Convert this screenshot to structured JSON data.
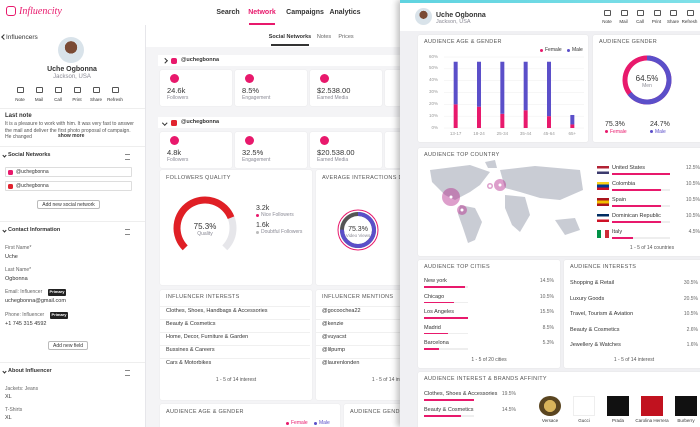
{
  "nav": {
    "brand": "Influencity",
    "tabs": [
      "Search",
      "Network",
      "Campaigns",
      "Analytics"
    ]
  },
  "sidebar": {
    "back": "Influencers",
    "name": "Uche Ogbonna",
    "location": "Jackson, USA",
    "actions": [
      "Note",
      "Mail",
      "Call",
      "Print",
      "Share",
      "Refresh"
    ],
    "last_note": {
      "title": "Last note",
      "text": "It is a pleasure to work with him. It was very fast to answer the mail and deliver the first photo proposal of campaign. He changed",
      "more": "show more"
    },
    "social_networks": {
      "title": "Social Networks",
      "accounts": [
        "@uchegbonna",
        "@uchegbonna"
      ],
      "button": "Add new social network"
    },
    "contact": {
      "title": "Contact Information",
      "fields": [
        {
          "label": "First Name*",
          "value": "Uche"
        },
        {
          "label": "Last Name*",
          "value": "Ogbonna"
        },
        {
          "label": "Email: Influencer",
          "badge": "Primary",
          "value": "uchegbonna@gmail.com"
        },
        {
          "label": "Phone: Influencer",
          "badge": "Primary",
          "value": "+1 745 315 4592"
        }
      ],
      "button": "Add new field"
    },
    "about": {
      "title": "About Influencer",
      "fields": [
        {
          "label": "Jackets: Jeans",
          "value": "XL"
        },
        {
          "label": "T-Shirts",
          "value": "XL"
        }
      ]
    }
  },
  "network": {
    "subtabs": [
      "Social Networks",
      "Notes",
      "Prices"
    ],
    "accounts": [
      {
        "handle": "@uchegbonna",
        "stats": [
          {
            "value": "24.6k",
            "label": "Followers"
          },
          {
            "value": "8.5%",
            "label": "Engagement"
          },
          {
            "value": "$2.538.00",
            "label": "Earned Media"
          }
        ]
      },
      {
        "handle": "@uchegbonna",
        "stats": [
          {
            "value": "4.8k",
            "label": "Followers"
          },
          {
            "value": "32.5%",
            "label": "Engagement"
          },
          {
            "value": "$20.538.00",
            "label": "Earned Media"
          }
        ]
      }
    ],
    "followers_quality": {
      "title": "FOLLOWERS QUALITY",
      "value": 75.3,
      "value_label": "75.3%",
      "label": "Quality",
      "nice": {
        "value": "3.2k",
        "label": "Nice Followers"
      },
      "doubtful": {
        "value": "1.6k",
        "label": "Doubtful Followers"
      }
    },
    "interactions": {
      "title": "AVERAGE INTERACTIONS DIS",
      "value": 75.3,
      "value_label": "75.3%",
      "label": "Video Views"
    },
    "interests": {
      "title": "INFLUENCER INTERESTS",
      "items": [
        "Clothes, Shoes, Handbags & Accessories",
        "Beauty & Cosmetics",
        "Home, Decor, Furniture & Garden",
        "Bussines & Careers",
        "Cars & Motorbikes"
      ],
      "pager": "1 - 5 of 14 interest"
    },
    "mentions": {
      "title": "INFLUENCER MENTIONS",
      "items": [
        "@gocoochea22",
        "@kenzie",
        "@vuyacst",
        "@lilpump",
        "@laurenlonden"
      ],
      "pager": "1 - 5 of 14 interest"
    },
    "audience_age": {
      "title": "AUDIENCE AGE & GENDER",
      "legend": [
        "Female",
        "Male"
      ]
    },
    "audience_gender": {
      "title": "AUDIENCE GENDE"
    }
  },
  "report": {
    "name": "Uche Ogbonna",
    "location": "Jackson, USA",
    "actions": [
      "Note",
      "Mail",
      "Call",
      "Print",
      "Share",
      "Refresh"
    ],
    "age_gender": {
      "type": "bar",
      "title": "AUDIENCE AGE & GENDER",
      "stacked": true,
      "categories": [
        "13-17",
        "18-24",
        "25-34",
        "35-44",
        "45-64",
        "65+"
      ],
      "series": [
        {
          "name": "Female",
          "color": "#e8196c",
          "values": [
            20,
            18,
            12,
            15,
            10,
            3
          ]
        },
        {
          "name": "Male",
          "color": "#5b4fc9",
          "values": [
            36,
            38,
            44,
            41,
            46,
            8
          ]
        }
      ],
      "ylim": [
        0,
        60
      ],
      "yticks": [
        {
          "value": 0,
          "label": "0%"
        },
        {
          "value": 10,
          "label": "10%"
        },
        {
          "value": 20,
          "label": "20%"
        },
        {
          "value": 30,
          "label": "30%"
        },
        {
          "value": 40,
          "label": "40%"
        },
        {
          "value": 50,
          "label": "50%"
        },
        {
          "value": 60,
          "label": "60%"
        }
      ],
      "grid": true
    },
    "gender": {
      "title": "AUDIENCE GENDER",
      "value": 64.5,
      "value_label": "64.5%",
      "label": "Men",
      "female": {
        "name": "Female",
        "value": 75.3,
        "value_label": "75.3%"
      },
      "male": {
        "name": "Male",
        "value": 24.7,
        "value_label": "24.7%"
      }
    },
    "countries": {
      "title": "AUDIENCE TOP COUNTRY",
      "items": [
        {
          "name": "United States",
          "value": 12.5,
          "value_label": "12.5%"
        },
        {
          "name": "Colombia",
          "value": 10.5,
          "value_label": "10.5%"
        },
        {
          "name": "Spain",
          "value": 10.5,
          "value_label": "10.5%"
        },
        {
          "name": "Dominican Republic",
          "value": 10.5,
          "value_label": "10.5%"
        },
        {
          "name": "Italy",
          "value": 4.5,
          "value_label": "4.5%"
        }
      ],
      "pager": "1 - 5 of 14 countries"
    },
    "cities": {
      "title": "AUDIENCE TOP CITIES",
      "items": [
        {
          "name": "New york",
          "value": 14.5,
          "value_label": "14.5%"
        },
        {
          "name": "Chicago",
          "value": 10.5,
          "value_label": "10.5%"
        },
        {
          "name": "Los Angeles",
          "value": 15.5,
          "value_label": "15.5%"
        },
        {
          "name": "Madrid",
          "value": 8.5,
          "value_label": "8.5%"
        },
        {
          "name": "Barcelona",
          "value": 5.3,
          "value_label": "5.3%"
        }
      ],
      "pager": "1 - 5 of 20 cities"
    },
    "interests": {
      "title": "AUDIENCE INTERESTS",
      "items": [
        {
          "name": "Shopping & Retail",
          "value": 30.5,
          "value_label": "30.5%"
        },
        {
          "name": "Luxury Goods",
          "value": 20.5,
          "value_label": "20.5%"
        },
        {
          "name": "Travel, Tourism & Aviation",
          "value": 10.5,
          "value_label": "10.5%"
        },
        {
          "name": "Beauty & Cosmetics",
          "value": 2.6,
          "value_label": "2.6%"
        },
        {
          "name": "Jewellery & Watches",
          "value": 1.6,
          "value_label": "1.6%"
        }
      ],
      "pager": "1 - 5 of 14 interest"
    },
    "brands": {
      "title": "AUDIENCE INTEREST & BRANDS AFFINITY",
      "items": [
        {
          "name": "Clothes, Shoes & Accessories",
          "value": 19.5,
          "value_label": "19.5%"
        },
        {
          "name": "Beauty & Cosmetics",
          "value": 14.5,
          "value_label": "14.5%"
        }
      ],
      "logos": [
        "Versace",
        "Gucci",
        "Prada",
        "Carolina Herrera",
        "Burberry"
      ]
    }
  }
}
